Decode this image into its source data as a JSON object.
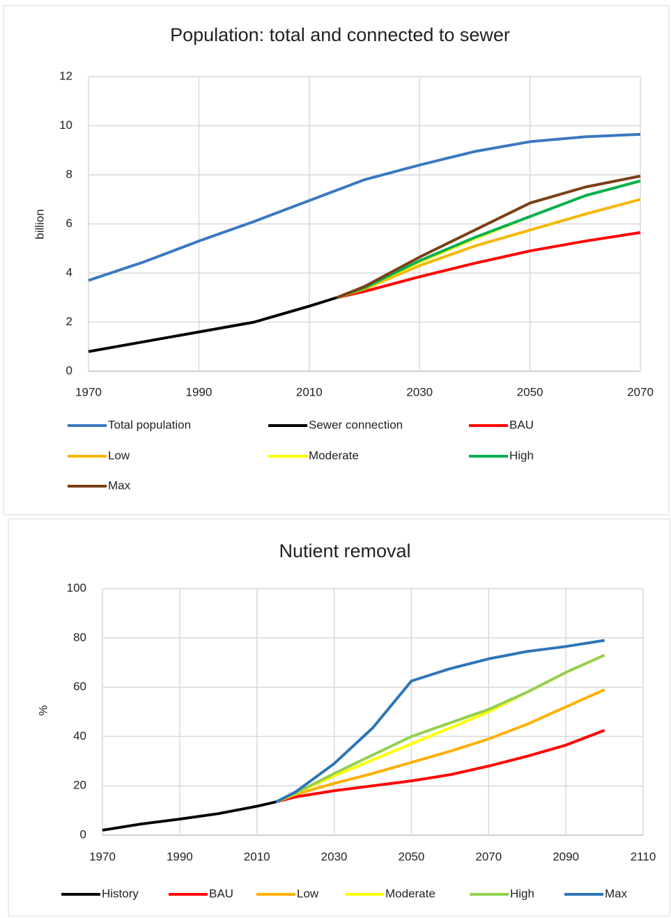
{
  "chart_data": [
    {
      "type": "line",
      "title": "Population: total and connected to sewer",
      "y_label": "billion",
      "xlim": [
        1970,
        2070
      ],
      "xticks": [
        1970,
        1990,
        2010,
        2030,
        2050,
        2070
      ],
      "ylim": [
        0,
        12
      ],
      "yticks": [
        0,
        2,
        4,
        6,
        8,
        10,
        12
      ],
      "grid": true,
      "series": [
        {
          "name": "Total population",
          "color": "#3b78c0",
          "x": [
            1970,
            1980,
            1990,
            2000,
            2010,
            2020,
            2030,
            2040,
            2050,
            2060,
            2070
          ],
          "values": [
            3.7,
            4.45,
            5.3,
            6.1,
            6.95,
            7.8,
            8.4,
            8.95,
            9.35,
            9.55,
            9.65
          ]
        },
        {
          "name": "Sewer connection",
          "color": "#000000",
          "x": [
            1970,
            1980,
            1990,
            2000,
            2010,
            2015
          ],
          "values": [
            0.8,
            1.2,
            1.6,
            2.0,
            2.65,
            3.0
          ]
        },
        {
          "name": "BAU",
          "color": "#ff0000",
          "x": [
            2015,
            2020,
            2030,
            2040,
            2050,
            2060,
            2070
          ],
          "values": [
            3.0,
            3.25,
            3.85,
            4.4,
            4.9,
            5.3,
            5.65
          ]
        },
        {
          "name": "Low",
          "color": "#f5b800",
          "x": [
            2015,
            2020,
            2030,
            2040,
            2050,
            2060,
            2070
          ],
          "values": [
            3.0,
            3.35,
            4.3,
            5.1,
            5.75,
            6.4,
            7.0
          ]
        },
        {
          "name": "Moderate",
          "color": "#ffff00",
          "x": [
            2015,
            2020,
            2030,
            2040,
            2050,
            2060,
            2070
          ],
          "values": [
            3.0,
            3.4,
            4.45,
            5.4,
            6.3,
            7.15,
            7.75
          ]
        },
        {
          "name": "High",
          "color": "#00b050",
          "x": [
            2015,
            2020,
            2030,
            2040,
            2050,
            2060,
            2070
          ],
          "values": [
            3.0,
            3.4,
            4.5,
            5.45,
            6.3,
            7.15,
            7.75
          ]
        },
        {
          "name": "Max",
          "color": "#7b3f16",
          "x": [
            2015,
            2020,
            2030,
            2040,
            2050,
            2060,
            2070
          ],
          "values": [
            3.0,
            3.45,
            4.65,
            5.75,
            6.85,
            7.5,
            7.95
          ]
        }
      ]
    },
    {
      "type": "line",
      "title": "Nutient removal",
      "y_label": "%",
      "xlim": [
        1970,
        2110
      ],
      "xticks": [
        1970,
        1990,
        2010,
        2030,
        2050,
        2070,
        2090,
        2110
      ],
      "ylim": [
        0,
        100
      ],
      "yticks": [
        0,
        20,
        40,
        60,
        80,
        100
      ],
      "grid": true,
      "series": [
        {
          "name": "History",
          "color": "#000000",
          "x": [
            1970,
            1980,
            1990,
            2000,
            2010,
            2015
          ],
          "values": [
            2,
            4.5,
            6.5,
            8.7,
            11.7,
            13.5
          ]
        },
        {
          "name": "BAU",
          "color": "#ff0000",
          "x": [
            2015,
            2020,
            2030,
            2040,
            2050,
            2060,
            2070,
            2080,
            2090,
            2100
          ],
          "values": [
            13.5,
            15.5,
            18,
            20,
            22,
            24.5,
            28,
            32,
            36.5,
            42.5
          ]
        },
        {
          "name": "Low",
          "color": "#ffb000",
          "x": [
            2015,
            2020,
            2030,
            2040,
            2050,
            2060,
            2070,
            2080,
            2090,
            2100
          ],
          "values": [
            13.5,
            16.5,
            21,
            25,
            29.5,
            34,
            39,
            45,
            52,
            59
          ]
        },
        {
          "name": "Moderate",
          "color": "#ffff00",
          "x": [
            2015,
            2020,
            2030,
            2040,
            2050,
            2060,
            2070,
            2080,
            2090,
            2100
          ],
          "values": [
            13.5,
            17,
            24,
            30.5,
            37,
            43.5,
            50,
            58,
            66,
            73
          ]
        },
        {
          "name": "High",
          "color": "#92d050",
          "x": [
            2015,
            2020,
            2030,
            2040,
            2050,
            2060,
            2070,
            2080,
            2090,
            2100
          ],
          "values": [
            13.5,
            17,
            25,
            32.5,
            40,
            45.5,
            51,
            58,
            66,
            73
          ]
        },
        {
          "name": "Max",
          "color": "#2e75b6",
          "x": [
            2015,
            2020,
            2030,
            2040,
            2050,
            2060,
            2070,
            2080,
            2090,
            2100
          ],
          "values": [
            13.5,
            17.5,
            29,
            43.5,
            62.5,
            67.5,
            71.5,
            74.5,
            76.5,
            79
          ]
        }
      ]
    }
  ]
}
